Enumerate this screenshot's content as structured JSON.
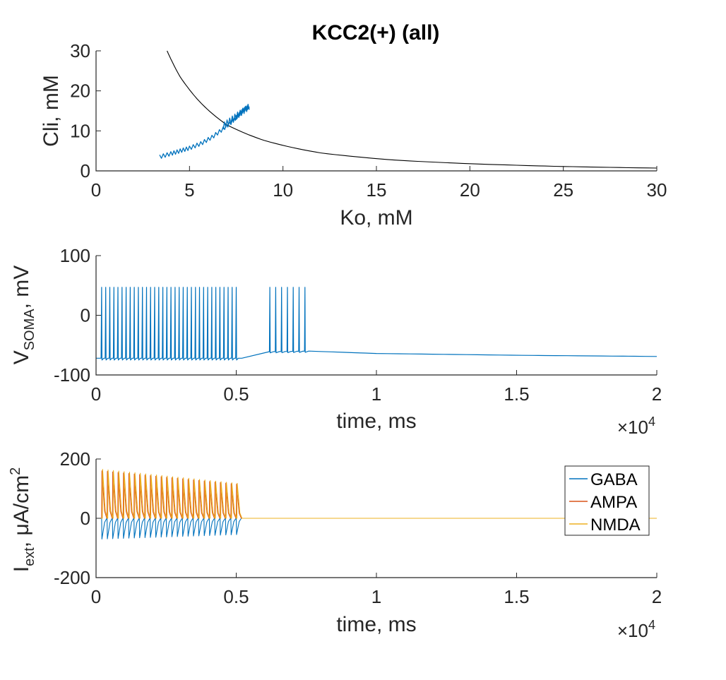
{
  "colors": {
    "gaba": "#0072BD",
    "ampa": "#D95319",
    "nmda": "#EDB120",
    "curve": "#000000",
    "axis": "#262626"
  },
  "chart_data": [
    {
      "type": "line",
      "title": "KCC2(+) (all)",
      "xlabel": "Ko, mM",
      "ylabel": "Cli, mM",
      "xlim": [
        0,
        30
      ],
      "ylim": [
        0,
        30
      ],
      "xticks": [
        "0",
        "5",
        "10",
        "15",
        "20",
        "25",
        "30"
      ],
      "yticks": [
        "0",
        "10",
        "20",
        "30"
      ],
      "grid": false,
      "series": [
        {
          "role": "nullcline",
          "color": "#000000",
          "x": [
            3.8,
            4.5,
            5.5,
            7.0,
            9.0,
            12.0,
            16.0,
            20.0,
            25.0,
            30.0
          ],
          "y": [
            30.0,
            23.5,
            17.5,
            11.5,
            7.6,
            4.5,
            2.7,
            1.8,
            1.1,
            0.7
          ]
        },
        {
          "role": "trajectory",
          "color": "#0072BD",
          "x": [
            3.4,
            4.0,
            4.5,
            5.0,
            5.6,
            6.2,
            6.8,
            7.3,
            7.6,
            7.8,
            8.0,
            8.2
          ],
          "y": [
            3.5,
            4.3,
            5.0,
            5.7,
            6.8,
            8.4,
            10.5,
            12.4,
            13.8,
            14.8,
            15.6,
            16.0
          ]
        }
      ]
    },
    {
      "type": "line",
      "title": "",
      "xlabel": "time, ms",
      "ylabel_main": "V",
      "ylabel_sub": "SOMA",
      "ylabel_tail": ", mV",
      "xlim": [
        0,
        20000
      ],
      "ylim": [
        -100,
        100
      ],
      "xticks": [
        "0",
        "0.5",
        "1",
        "1.5",
        "2"
      ],
      "yticks": [
        "-100",
        "0",
        "100"
      ],
      "x_multiplier_base": "×10",
      "x_multiplier_exp": "4",
      "series": [
        {
          "name": "",
          "color": "#0072BD",
          "burst1": {
            "start": 200,
            "end": 5000,
            "count": 34,
            "peak": 47,
            "trough": -75
          },
          "burst2": {
            "start": 6200,
            "end": 7450,
            "count": 7,
            "peak": 47
          },
          "baseline": [
            [
              0,
              -72
            ],
            [
              5200,
              -72
            ],
            [
              6200,
              -61
            ],
            [
              7600,
              -60
            ],
            [
              10000,
              -64
            ],
            [
              15000,
              -67
            ],
            [
              20000,
              -69
            ]
          ]
        }
      ]
    },
    {
      "type": "line",
      "title": "",
      "xlabel": "time, ms",
      "ylabel_main": "I",
      "ylabel_sub": "ext",
      "ylabel_tail": ", μA/cm",
      "ylabel_sup": "2",
      "xlim": [
        0,
        20000
      ],
      "ylim": [
        -200,
        200
      ],
      "xticks": [
        "0",
        "0.5",
        "1",
        "1.5",
        "2"
      ],
      "yticks": [
        "-200",
        "0",
        "200"
      ],
      "x_multiplier_base": "×10",
      "x_multiplier_exp": "4",
      "legend": {
        "position": "top-right",
        "entries": [
          "GABA",
          "AMPA",
          "NMDA"
        ]
      },
      "series": [
        {
          "name": "GABA",
          "color": "#0072BD",
          "start": 200,
          "end": 5000,
          "count": 26,
          "peak_start": -70,
          "peak_end": -55
        },
        {
          "name": "AMPA",
          "color": "#D95319",
          "start": 200,
          "end": 5000,
          "count": 26,
          "peak_start": 160,
          "peak_end": 115
        },
        {
          "name": "NMDA",
          "color": "#EDB120",
          "start": 200,
          "end": 5000,
          "count": 26,
          "peak_start": 165,
          "peak_end": 118
        }
      ]
    }
  ]
}
